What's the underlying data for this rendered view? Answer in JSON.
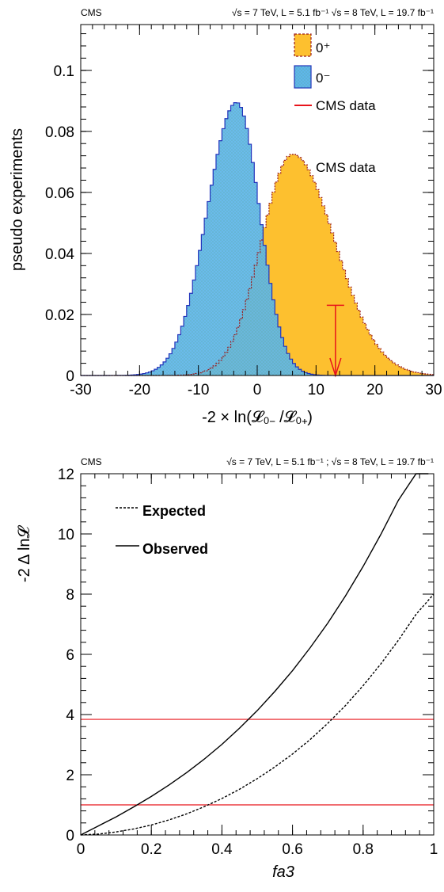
{
  "chart_data": [
    {
      "type": "area",
      "header": {
        "left": "CMS",
        "right": "√s = 7 TeV, L = 5.1 fb⁻¹  √s = 8 TeV, L = 19.7 fb⁻¹"
      },
      "xlabel": "-2 × ln(𝓛₀₋ /𝓛₀₊)",
      "ylabel": "pseudo experiments",
      "xlim": [
        -30,
        30
      ],
      "ylim": [
        0,
        0.115
      ],
      "x_ticks": [
        -30,
        -20,
        -10,
        0,
        10,
        20,
        30
      ],
      "x_tick_labels": [
        "-30",
        "-20",
        "-10",
        "0",
        "10",
        "20",
        "30"
      ],
      "y_ticks": [
        0,
        0.02,
        0.04,
        0.06,
        0.08,
        0.1
      ],
      "y_tick_labels": [
        "0",
        "0.02",
        "0.04",
        "0.06",
        "0.08",
        "0.1"
      ],
      "bin_width": 0.5,
      "series": [
        {
          "name": "0⁺",
          "shape": "skewed-gaussian",
          "mean": 6.0,
          "sigma_left": 5.3,
          "sigma_right": 7.2,
          "peak": 0.0725,
          "fill": "#fdc02f",
          "line": "#9a1b1b"
        },
        {
          "name": "0⁻",
          "shape": "skewed-gaussian",
          "mean": -3.5,
          "sigma_left": 5.0,
          "sigma_right": 3.9,
          "peak": 0.0895,
          "fill": "#5fb6ea",
          "line": "#2233bb"
        }
      ],
      "observed": {
        "name": "CMS data",
        "x": 13.3,
        "arrow_top": 0.023,
        "color": "#e8141b"
      },
      "legend": {
        "placement": "top-right",
        "entries": [
          "0⁺",
          "0⁻",
          "CMS data"
        ],
        "note": "CMS data"
      }
    },
    {
      "type": "line",
      "header": {
        "left": "CMS",
        "right": "√s = 7 TeV, L = 5.1 fb⁻¹ ; √s = 8 TeV, L = 19.7 fb⁻¹"
      },
      "xlabel": "fa3",
      "ylabel": "-2 Δ ln𝓛",
      "xlim": [
        0,
        1
      ],
      "ylim": [
        0,
        12
      ],
      "x_ticks": [
        0,
        0.2,
        0.4,
        0.6,
        0.8,
        1
      ],
      "x_tick_labels": [
        "0",
        "0.2",
        "0.4",
        "0.6",
        "0.8",
        "1"
      ],
      "y_ticks": [
        0,
        2,
        4,
        6,
        8,
        10,
        12
      ],
      "y_tick_labels": [
        "0",
        "2",
        "4",
        "6",
        "8",
        "10",
        "12"
      ],
      "series": [
        {
          "name": "Expected",
          "style": "dashed",
          "x": [
            0,
            0.05,
            0.1,
            0.15,
            0.2,
            0.25,
            0.3,
            0.35,
            0.4,
            0.45,
            0.5,
            0.55,
            0.6,
            0.65,
            0.7,
            0.75,
            0.8,
            0.85,
            0.9,
            0.95,
            1.0
          ],
          "y": [
            0,
            0.03,
            0.1,
            0.2,
            0.33,
            0.5,
            0.7,
            0.94,
            1.21,
            1.52,
            1.87,
            2.26,
            2.69,
            3.17,
            3.71,
            4.3,
            4.96,
            5.68,
            6.47,
            7.33,
            8.0
          ]
        },
        {
          "name": "Observed",
          "style": "solid",
          "x": [
            0,
            0.05,
            0.1,
            0.15,
            0.2,
            0.25,
            0.3,
            0.35,
            0.4,
            0.45,
            0.5,
            0.55,
            0.6,
            0.65,
            0.7,
            0.75,
            0.8,
            0.85,
            0.9,
            0.95,
            0.985
          ],
          "y": [
            0,
            0.3,
            0.6,
            0.93,
            1.28,
            1.66,
            2.07,
            2.52,
            3.01,
            3.55,
            4.13,
            4.77,
            5.46,
            6.22,
            7.04,
            7.94,
            8.92,
            9.98,
            11.12,
            12.35,
            12.0
          ]
        }
      ],
      "reference_lines": [
        {
          "y": 1.0,
          "color": "#e8141b"
        },
        {
          "y": 3.84,
          "color": "#e8141b"
        }
      ],
      "legend": {
        "placement": "top-left",
        "entries": [
          "Expected",
          "Observed"
        ]
      }
    }
  ]
}
